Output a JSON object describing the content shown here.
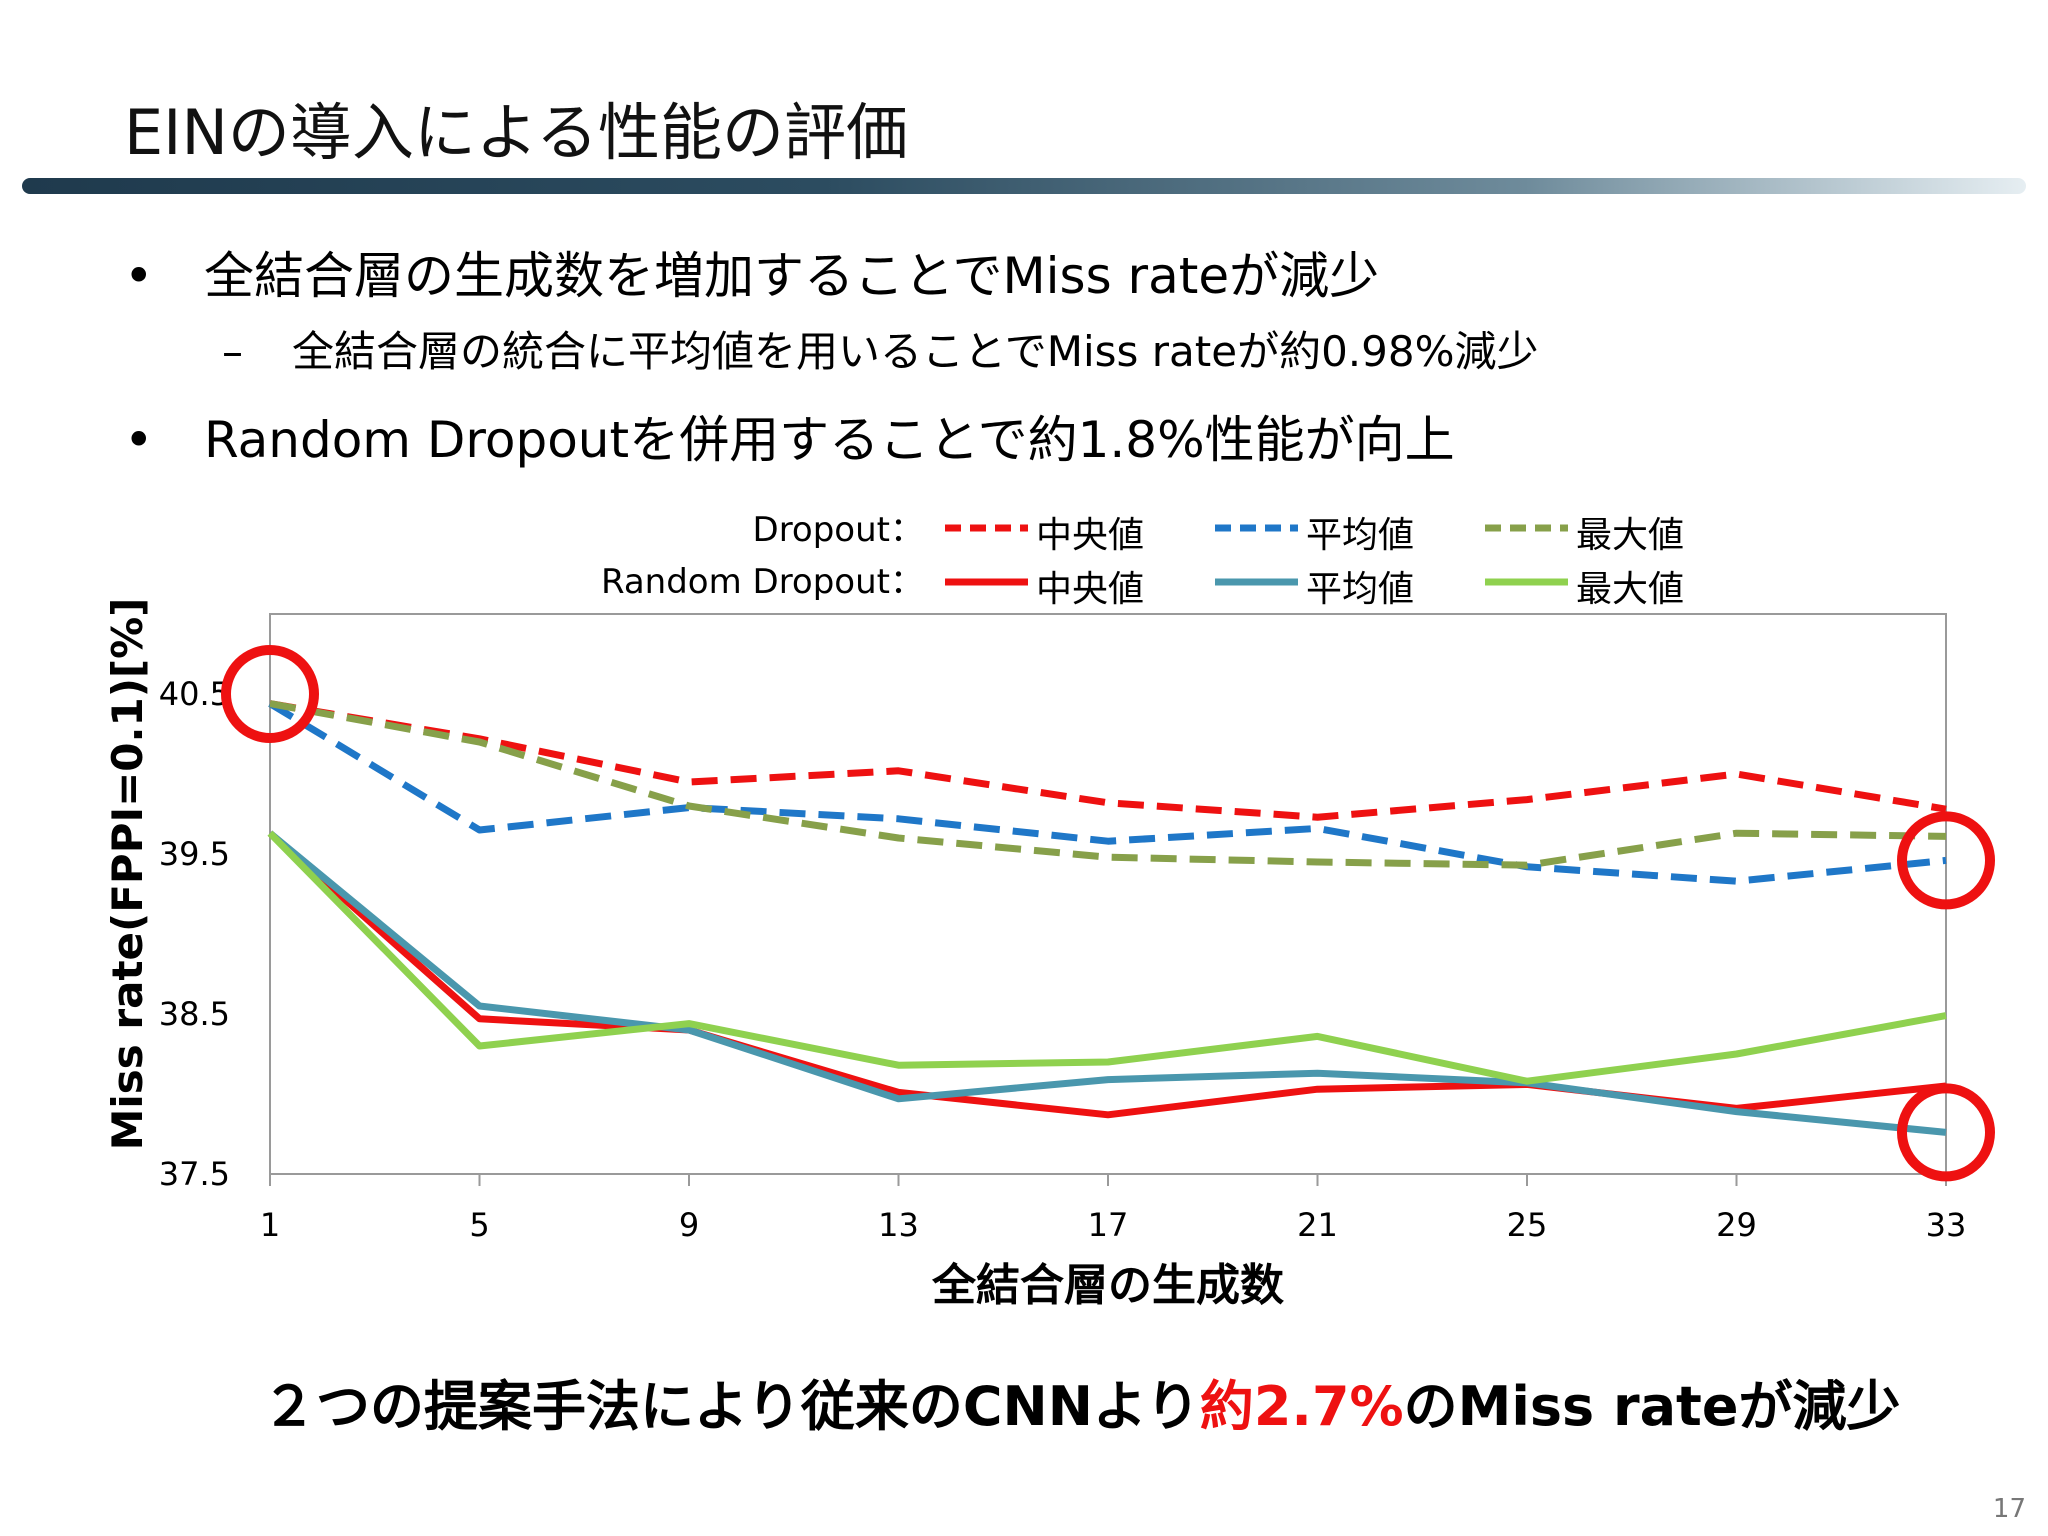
{
  "slide": {
    "title": "EINの導入による性能の評価",
    "bullets": [
      {
        "marker": "•",
        "text": "全結合層の生成数を増加することでMiss rateが減少"
      },
      {
        "marker": "–",
        "text": "全結合層の統合に平均値を用いることでMiss rateが約0.98%減少"
      },
      {
        "marker": "•",
        "text": "Random Dropoutを併用することで約1.8%性能が向上"
      }
    ],
    "legend": {
      "row_labels": [
        "Dropout：",
        "Random Dropout："
      ],
      "items": [
        "中央値",
        "平均値",
        "最大値"
      ]
    },
    "conclusion": {
      "before": "２つの提案手法により従来のCNNより",
      "highlight": "約2.7%",
      "after": "のMiss rateが減少"
    },
    "page_number": "17",
    "colors": {
      "red": "#ee1111",
      "blue": "#1f77c8",
      "olive": "#87a04a",
      "teal": "#4a97ad",
      "light_green": "#8fd14f",
      "circle": "#ee1111"
    }
  },
  "chart_data": {
    "type": "line",
    "x": [
      1,
      5,
      9,
      13,
      17,
      21,
      25,
      29,
      33
    ],
    "xticks": [
      "1",
      "5",
      "9",
      "13",
      "17",
      "21",
      "25",
      "29",
      "33"
    ],
    "yticks": [
      "37.5",
      "38.5",
      "39.5",
      "40.5"
    ],
    "ylim": [
      37.5,
      40.5
    ],
    "xlabel": "全結合層の生成数",
    "ylabel": "Miss rate(FPPI=0.1)[%]",
    "grid": false,
    "legend_position": "top",
    "series": [
      {
        "name": "Dropout：中央値",
        "style": "dashed",
        "color": "#ee1111",
        "values": [
          40.44,
          40.22,
          39.95,
          40.02,
          39.82,
          39.73,
          39.84,
          40.0,
          39.78
        ]
      },
      {
        "name": "Dropout：平均値",
        "style": "dashed",
        "color": "#1f77c8",
        "values": [
          40.44,
          39.65,
          39.79,
          39.72,
          39.58,
          39.66,
          39.42,
          39.33,
          39.46
        ]
      },
      {
        "name": "Dropout：最大値",
        "style": "dashed",
        "color": "#87a04a",
        "values": [
          40.44,
          40.2,
          39.8,
          39.6,
          39.48,
          39.45,
          39.43,
          39.63,
          39.61
        ]
      },
      {
        "name": "Random Dropout：中央値",
        "style": "solid",
        "color": "#ee1111",
        "values": [
          39.63,
          38.47,
          38.4,
          38.01,
          37.87,
          38.03,
          38.06,
          37.91,
          38.05
        ]
      },
      {
        "name": "Random Dropout：平均値",
        "style": "solid",
        "color": "#4a97ad",
        "values": [
          39.63,
          38.55,
          38.4,
          37.97,
          38.09,
          38.13,
          38.07,
          37.89,
          37.76
        ]
      },
      {
        "name": "Random Dropout：最大値",
        "style": "solid",
        "color": "#8fd14f",
        "values": [
          39.63,
          38.3,
          38.44,
          38.18,
          38.2,
          38.36,
          38.08,
          38.25,
          38.49
        ]
      }
    ],
    "highlight_circles": [
      {
        "x": 1,
        "y": 40.5
      },
      {
        "x": 33,
        "y": 39.46
      },
      {
        "x": 33,
        "y": 37.76
      }
    ]
  }
}
